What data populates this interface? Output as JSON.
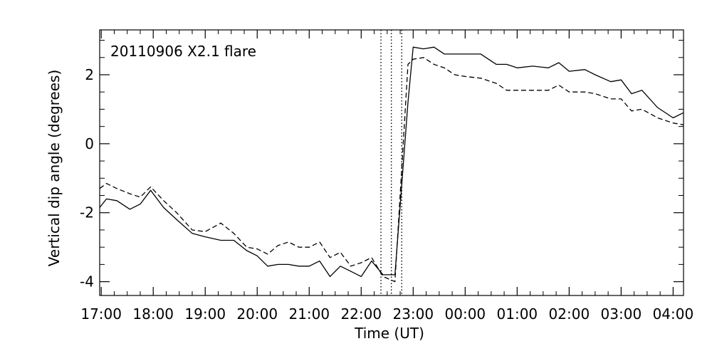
{
  "chart_data": {
    "type": "line",
    "annotation": "20110906 X2.1 flare",
    "xlabel": "Time (UT)",
    "ylabel": "Vertical dip angle (degrees)",
    "x_tick_labels": [
      "17:00",
      "18:00",
      "19:00",
      "20:00",
      "21:00",
      "22:00",
      "23:00",
      "00:00",
      "01:00",
      "02:00",
      "03:00",
      "04:00"
    ],
    "x_tick_hours": [
      17,
      18,
      19,
      20,
      21,
      22,
      23,
      24,
      25,
      26,
      27,
      28
    ],
    "xlim": [
      16.97,
      28.2
    ],
    "y_tick_values": [
      -4,
      -2,
      0,
      2
    ],
    "ylim": [
      -4.4,
      3.3
    ],
    "vertical_markers_hours": [
      22.38,
      22.58,
      22.78
    ],
    "series": [
      {
        "style": "solid",
        "x": [
          16.97,
          17.1,
          17.3,
          17.55,
          17.75,
          17.95,
          18.2,
          18.45,
          18.75,
          19.0,
          19.3,
          19.55,
          19.8,
          20.0,
          20.2,
          20.4,
          20.6,
          20.8,
          21.0,
          21.2,
          21.4,
          21.6,
          21.8,
          22.0,
          22.2,
          22.42,
          22.65,
          22.9,
          23.0,
          23.2,
          23.4,
          23.6,
          23.8,
          24.0,
          24.3,
          24.6,
          24.8,
          25.0,
          25.3,
          25.6,
          25.8,
          26.0,
          26.3,
          26.5,
          26.8,
          27.0,
          27.2,
          27.4,
          27.7,
          28.0,
          28.2
        ],
        "y": [
          -1.85,
          -1.6,
          -1.65,
          -1.9,
          -1.75,
          -1.35,
          -1.85,
          -2.2,
          -2.6,
          -2.7,
          -2.8,
          -2.8,
          -3.1,
          -3.25,
          -3.55,
          -3.5,
          -3.5,
          -3.55,
          -3.55,
          -3.4,
          -3.85,
          -3.55,
          -3.7,
          -3.85,
          -3.4,
          -3.8,
          -3.8,
          1.2,
          2.8,
          2.75,
          2.8,
          2.6,
          2.6,
          2.6,
          2.6,
          2.3,
          2.3,
          2.2,
          2.25,
          2.2,
          2.35,
          2.1,
          2.15,
          2.0,
          1.8,
          1.85,
          1.45,
          1.55,
          1.05,
          0.75,
          0.9
        ]
      },
      {
        "style": "dashed",
        "x": [
          16.97,
          17.1,
          17.3,
          17.55,
          17.75,
          17.95,
          18.2,
          18.45,
          18.75,
          19.0,
          19.3,
          19.55,
          19.8,
          20.0,
          20.2,
          20.4,
          20.6,
          20.8,
          21.0,
          21.2,
          21.4,
          21.6,
          21.8,
          22.0,
          22.2,
          22.42,
          22.65,
          22.9,
          23.0,
          23.2,
          23.4,
          23.6,
          23.8,
          24.0,
          24.3,
          24.6,
          24.8,
          25.0,
          25.3,
          25.6,
          25.8,
          26.0,
          26.3,
          26.5,
          26.8,
          27.0,
          27.2,
          27.4,
          27.7,
          28.0,
          28.2
        ],
        "y": [
          -1.3,
          -1.15,
          -1.3,
          -1.45,
          -1.55,
          -1.25,
          -1.65,
          -2.0,
          -2.5,
          -2.55,
          -2.3,
          -2.6,
          -3.0,
          -3.05,
          -3.2,
          -2.95,
          -2.85,
          -3.0,
          -3.0,
          -2.85,
          -3.3,
          -3.15,
          -3.55,
          -3.45,
          -3.3,
          -3.85,
          -4.0,
          2.3,
          2.45,
          2.5,
          2.3,
          2.2,
          2.0,
          1.95,
          1.9,
          1.75,
          1.55,
          1.55,
          1.55,
          1.55,
          1.7,
          1.5,
          1.5,
          1.45,
          1.3,
          1.3,
          0.95,
          1.0,
          0.75,
          0.6,
          0.55
        ]
      }
    ]
  }
}
